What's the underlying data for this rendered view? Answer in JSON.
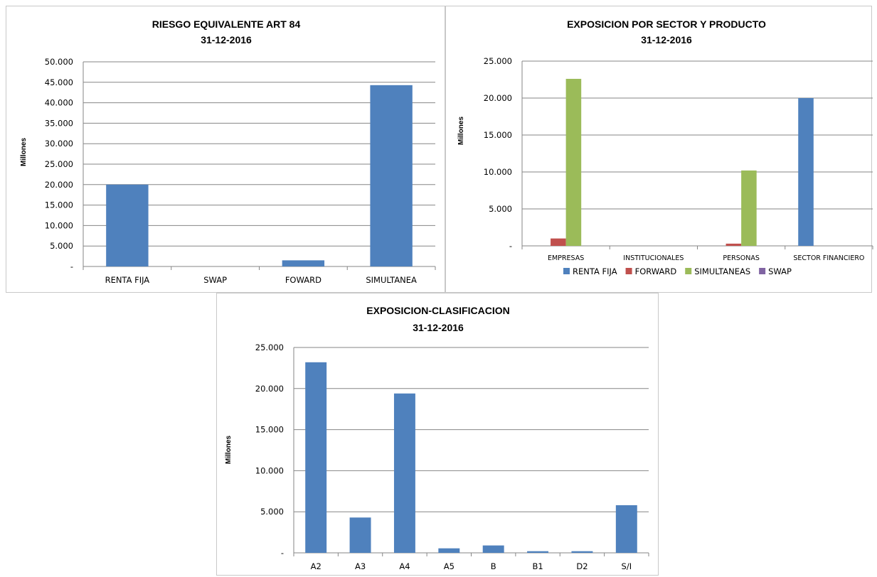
{
  "colors": {
    "blue": "#4f81bd",
    "red": "#c0504d",
    "green": "#9bbb59",
    "purple": "#8064a2",
    "grid": "#868686",
    "axis": "#868686"
  },
  "chart_data": [
    {
      "type": "bar",
      "title": "RIESGO EQUIVALENTE ART 84",
      "subtitle": "31-12-2016",
      "ylabel": "Millones",
      "xlabel": "",
      "categories": [
        "RENTA FIJA",
        "SWAP",
        "FOWARD",
        "SIMULTANEA"
      ],
      "series": [
        {
          "values": [
            20000,
            0,
            1500,
            44300
          ],
          "color": "#4f81bd"
        }
      ],
      "ylim": [
        0,
        50000
      ],
      "yticks": [
        0,
        5000,
        10000,
        15000,
        20000,
        25000,
        30000,
        35000,
        40000,
        45000,
        50000
      ],
      "ytick_labels": [
        "-",
        "5.000",
        "10.000",
        "15.000",
        "20.000",
        "25.000",
        "30.000",
        "35.000",
        "40.000",
        "45.000",
        "50.000"
      ],
      "grid": true,
      "legend": "none"
    },
    {
      "type": "bar",
      "title": "EXPOSICION POR SECTOR Y PRODUCTO",
      "subtitle": "31-12-2016",
      "ylabel": "Millones",
      "xlabel": "",
      "categories": [
        "EMPRESAS",
        "INSTITUCIONALES",
        "PERSONAS",
        "SECTOR FINANCIERO"
      ],
      "series": [
        {
          "name": "RENTA FIJA",
          "values": [
            0,
            0,
            0,
            20000
          ],
          "color": "#4f81bd"
        },
        {
          "name": "FORWARD",
          "values": [
            1000,
            0,
            300,
            0
          ],
          "color": "#c0504d"
        },
        {
          "name": "SIMULTANEAS",
          "values": [
            22600,
            0,
            10200,
            0
          ],
          "color": "#9bbb59"
        },
        {
          "name": "SWAP",
          "values": [
            0,
            0,
            0,
            0
          ],
          "color": "#8064a2"
        }
      ],
      "ylim": [
        0,
        25000
      ],
      "yticks": [
        0,
        5000,
        10000,
        15000,
        20000,
        25000
      ],
      "ytick_labels": [
        "-",
        "5.000",
        "10.000",
        "15.000",
        "20.000",
        "25.000"
      ],
      "grid": true,
      "legend": "bottom"
    },
    {
      "type": "bar",
      "title": "EXPOSICION-CLASIFICACION",
      "subtitle": "31-12-2016",
      "ylabel": "Millones",
      "xlabel": "",
      "categories": [
        "A2",
        "A3",
        "A4",
        "A5",
        "B",
        "B1",
        "D2",
        "S/I"
      ],
      "series": [
        {
          "values": [
            23200,
            4300,
            19400,
            550,
            900,
            200,
            200,
            5800
          ],
          "color": "#4f81bd"
        }
      ],
      "ylim": [
        0,
        25000
      ],
      "yticks": [
        0,
        5000,
        10000,
        15000,
        20000,
        25000
      ],
      "ytick_labels": [
        "-",
        "5.000",
        "10.000",
        "15.000",
        "20.000",
        "25.000"
      ],
      "grid": true,
      "legend": "none"
    }
  ]
}
